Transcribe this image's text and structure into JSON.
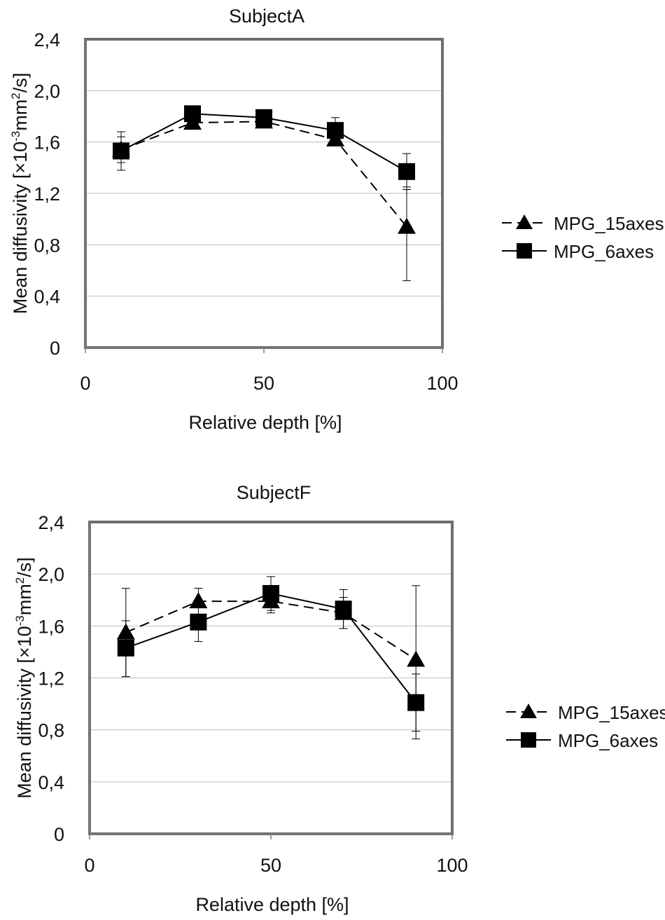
{
  "chart_data": [
    {
      "type": "line",
      "title": "SubjectA",
      "xlabel": "Relative depth [%]",
      "ylabel_main": "Mean diffusivity [×10",
      "ylabel_sup1": "-3",
      "ylabel_mid": "mm",
      "ylabel_sup2": "2",
      "ylabel_end": "/s]",
      "xlim": [
        0,
        100
      ],
      "ylim": [
        0,
        2.4
      ],
      "x_ticks": [
        0,
        50,
        100
      ],
      "x_tick_labels": [
        "0",
        "50",
        "100"
      ],
      "y_ticks": [
        0,
        0.4,
        0.8,
        1.2,
        1.6,
        2.0,
        2.4
      ],
      "y_tick_labels": [
        "0",
        "0,4",
        "0,8",
        "1,2",
        "1,6",
        "2,0",
        "2,4"
      ],
      "grid": "horizontal",
      "legend_position": "right",
      "series": [
        {
          "name": "MPG_15axes",
          "marker": "triangle",
          "line": "dashed",
          "color": "#000000",
          "x": [
            10,
            30,
            50,
            70,
            90
          ],
          "y": [
            1.54,
            1.75,
            1.76,
            1.62,
            0.94
          ],
          "err_low": [
            0.1,
            0.03,
            0.03,
            0.05,
            0.42
          ],
          "err_high": [
            0.1,
            0.03,
            0.03,
            0.05,
            0.31
          ]
        },
        {
          "name": "MPG_6axes",
          "marker": "square",
          "line": "solid",
          "color": "#000000",
          "x": [
            10,
            30,
            50,
            70,
            90
          ],
          "y": [
            1.53,
            1.82,
            1.79,
            1.69,
            1.37
          ],
          "err_low": [
            0.15,
            0.04,
            0.04,
            0.04,
            0.14
          ],
          "err_high": [
            0.15,
            0.04,
            0.04,
            0.1,
            0.14
          ]
        }
      ]
    },
    {
      "type": "line",
      "title": "SubjectF",
      "xlabel": "Relative depth [%]",
      "ylabel_main": "Mean diffusivity [×10",
      "ylabel_sup1": "-3",
      "ylabel_mid": "mm",
      "ylabel_sup2": "2",
      "ylabel_end": "/s]",
      "xlim": [
        0,
        100
      ],
      "ylim": [
        0,
        2.4
      ],
      "x_ticks": [
        0,
        50,
        100
      ],
      "x_tick_labels": [
        "0",
        "50",
        "100"
      ],
      "y_ticks": [
        0,
        0.4,
        0.8,
        1.2,
        1.6,
        2.0,
        2.4
      ],
      "y_tick_labels": [
        "0",
        "0,4",
        "0,8",
        "1,2",
        "1,6",
        "2,0",
        "2,4"
      ],
      "grid": "horizontal",
      "legend_position": "right",
      "series": [
        {
          "name": "MPG_15axes",
          "marker": "triangle",
          "line": "dashed",
          "color": "#000000",
          "x": [
            10,
            30,
            50,
            70,
            90
          ],
          "y": [
            1.55,
            1.79,
            1.79,
            1.7,
            1.34
          ],
          "err_low": [
            0.34,
            0.04,
            0.09,
            0.12,
            0.61
          ],
          "err_high": [
            0.34,
            0.1,
            0.09,
            0.12,
            0.57
          ]
        },
        {
          "name": "MPG_6axes",
          "marker": "square",
          "line": "solid",
          "color": "#000000",
          "x": [
            10,
            30,
            50,
            70,
            90
          ],
          "y": [
            1.43,
            1.63,
            1.85,
            1.73,
            1.01
          ],
          "err_low": [
            0.22,
            0.15,
            0.13,
            0.15,
            0.22
          ],
          "err_high": [
            0.21,
            0.15,
            0.13,
            0.15,
            0.22
          ]
        }
      ]
    }
  ]
}
